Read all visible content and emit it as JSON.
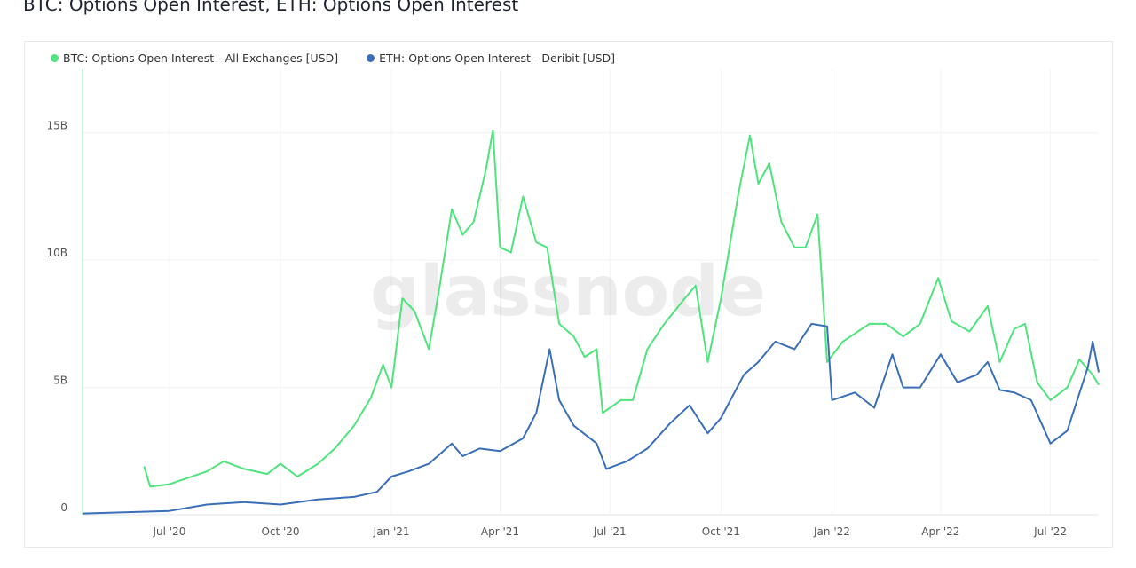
{
  "title": "BTC: Options Open Interest, ETH: Options Open Interest",
  "watermark": "glassnode",
  "chart_data": {
    "type": "line",
    "title": "BTC: Options Open Interest, ETH: Options Open Interest",
    "xlabel": "",
    "ylabel": "",
    "xlim": [
      "2020-04-20",
      "2022-08-10"
    ],
    "ylim": [
      0,
      17.5
    ],
    "y_unit": "B USD",
    "grid": true,
    "legend_placement": "top-left",
    "x_ticks": [
      {
        "date": "2020-07-01",
        "label": "Jul '20"
      },
      {
        "date": "2020-10-01",
        "label": "Oct '20"
      },
      {
        "date": "2021-01-01",
        "label": "Jan '21"
      },
      {
        "date": "2021-04-01",
        "label": "Apr '21"
      },
      {
        "date": "2021-07-01",
        "label": "Jul '21"
      },
      {
        "date": "2021-10-01",
        "label": "Oct '21"
      },
      {
        "date": "2022-01-01",
        "label": "Jan '22"
      },
      {
        "date": "2022-04-01",
        "label": "Apr '22"
      },
      {
        "date": "2022-07-01",
        "label": "Jul '22"
      }
    ],
    "y_ticks": [
      {
        "value": 0,
        "label": "0"
      },
      {
        "value": 5,
        "label": "5B"
      },
      {
        "value": 10,
        "label": "10B"
      },
      {
        "value": 15,
        "label": "15B"
      }
    ],
    "series": [
      {
        "name": "BTC: Options Open Interest - All Exchanges [USD]",
        "color": "#4ee47c",
        "points": [
          [
            "2020-06-10",
            1.9
          ],
          [
            "2020-06-15",
            1.1
          ],
          [
            "2020-07-01",
            1.2
          ],
          [
            "2020-08-01",
            1.7
          ],
          [
            "2020-08-15",
            2.1
          ],
          [
            "2020-09-01",
            1.8
          ],
          [
            "2020-09-20",
            1.6
          ],
          [
            "2020-10-01",
            2.0
          ],
          [
            "2020-10-15",
            1.5
          ],
          [
            "2020-11-01",
            2.0
          ],
          [
            "2020-11-15",
            2.6
          ],
          [
            "2020-12-01",
            3.5
          ],
          [
            "2020-12-15",
            4.6
          ],
          [
            "2020-12-25",
            5.9
          ],
          [
            "2021-01-01",
            5.0
          ],
          [
            "2021-01-10",
            8.5
          ],
          [
            "2021-01-20",
            8.0
          ],
          [
            "2021-02-01",
            6.5
          ],
          [
            "2021-02-10",
            9.0
          ],
          [
            "2021-02-20",
            12.0
          ],
          [
            "2021-03-01",
            11.0
          ],
          [
            "2021-03-10",
            11.5
          ],
          [
            "2021-03-20",
            13.5
          ],
          [
            "2021-03-26",
            15.1
          ],
          [
            "2021-04-01",
            10.5
          ],
          [
            "2021-04-10",
            10.3
          ],
          [
            "2021-04-20",
            12.5
          ],
          [
            "2021-05-01",
            10.7
          ],
          [
            "2021-05-10",
            10.5
          ],
          [
            "2021-05-20",
            7.5
          ],
          [
            "2021-06-01",
            7.0
          ],
          [
            "2021-06-10",
            6.2
          ],
          [
            "2021-06-20",
            6.5
          ],
          [
            "2021-06-25",
            4.0
          ],
          [
            "2021-07-10",
            4.5
          ],
          [
            "2021-07-20",
            4.5
          ],
          [
            "2021-08-01",
            6.5
          ],
          [
            "2021-08-15",
            7.5
          ],
          [
            "2021-09-01",
            8.5
          ],
          [
            "2021-09-10",
            9.0
          ],
          [
            "2021-09-20",
            6.0
          ],
          [
            "2021-10-01",
            8.5
          ],
          [
            "2021-10-15",
            12.5
          ],
          [
            "2021-10-25",
            14.9
          ],
          [
            "2021-11-01",
            13.0
          ],
          [
            "2021-11-10",
            13.8
          ],
          [
            "2021-11-20",
            11.5
          ],
          [
            "2021-12-01",
            10.5
          ],
          [
            "2021-12-10",
            10.5
          ],
          [
            "2021-12-20",
            11.8
          ],
          [
            "2021-12-28",
            6.0
          ],
          [
            "2022-01-10",
            6.8
          ],
          [
            "2022-02-01",
            7.5
          ],
          [
            "2022-02-15",
            7.5
          ],
          [
            "2022-03-01",
            7.0
          ],
          [
            "2022-03-15",
            7.5
          ],
          [
            "2022-03-30",
            9.3
          ],
          [
            "2022-04-10",
            7.6
          ],
          [
            "2022-04-25",
            7.2
          ],
          [
            "2022-05-10",
            8.2
          ],
          [
            "2022-05-20",
            6.0
          ],
          [
            "2022-06-01",
            7.3
          ],
          [
            "2022-06-10",
            7.5
          ],
          [
            "2022-06-20",
            5.2
          ],
          [
            "2022-07-01",
            4.5
          ],
          [
            "2022-07-15",
            5.0
          ],
          [
            "2022-07-25",
            6.1
          ],
          [
            "2022-08-05",
            5.5
          ],
          [
            "2022-08-10",
            5.1
          ]
        ]
      },
      {
        "name": "ETH: Options Open Interest - Deribit [USD]",
        "color": "#3a6fb8",
        "points": [
          [
            "2020-04-20",
            0.05
          ],
          [
            "2020-07-01",
            0.15
          ],
          [
            "2020-08-01",
            0.4
          ],
          [
            "2020-09-01",
            0.5
          ],
          [
            "2020-10-01",
            0.4
          ],
          [
            "2020-11-01",
            0.6
          ],
          [
            "2020-12-01",
            0.7
          ],
          [
            "2020-12-20",
            0.9
          ],
          [
            "2021-01-01",
            1.5
          ],
          [
            "2021-01-15",
            1.7
          ],
          [
            "2021-02-01",
            2.0
          ],
          [
            "2021-02-20",
            2.8
          ],
          [
            "2021-03-01",
            2.3
          ],
          [
            "2021-03-15",
            2.6
          ],
          [
            "2021-04-01",
            2.5
          ],
          [
            "2021-04-20",
            3.0
          ],
          [
            "2021-05-01",
            4.0
          ],
          [
            "2021-05-12",
            6.5
          ],
          [
            "2021-05-20",
            4.5
          ],
          [
            "2021-06-01",
            3.5
          ],
          [
            "2021-06-20",
            2.8
          ],
          [
            "2021-06-28",
            1.8
          ],
          [
            "2021-07-15",
            2.1
          ],
          [
            "2021-08-01",
            2.6
          ],
          [
            "2021-08-20",
            3.6
          ],
          [
            "2021-09-05",
            4.3
          ],
          [
            "2021-09-20",
            3.2
          ],
          [
            "2021-10-01",
            3.8
          ],
          [
            "2021-10-20",
            5.5
          ],
          [
            "2021-11-01",
            6.0
          ],
          [
            "2021-11-15",
            6.8
          ],
          [
            "2021-12-01",
            6.5
          ],
          [
            "2021-12-15",
            7.5
          ],
          [
            "2021-12-28",
            7.4
          ],
          [
            "2022-01-01",
            4.5
          ],
          [
            "2022-01-20",
            4.8
          ],
          [
            "2022-02-05",
            4.2
          ],
          [
            "2022-02-20",
            6.3
          ],
          [
            "2022-03-01",
            5.0
          ],
          [
            "2022-03-15",
            5.0
          ],
          [
            "2022-04-01",
            6.3
          ],
          [
            "2022-04-15",
            5.2
          ],
          [
            "2022-05-01",
            5.5
          ],
          [
            "2022-05-10",
            6.0
          ],
          [
            "2022-05-20",
            4.9
          ],
          [
            "2022-06-01",
            4.8
          ],
          [
            "2022-06-15",
            4.5
          ],
          [
            "2022-07-01",
            2.8
          ],
          [
            "2022-07-15",
            3.3
          ],
          [
            "2022-08-01",
            5.8
          ],
          [
            "2022-08-05",
            6.8
          ],
          [
            "2022-08-10",
            5.6
          ]
        ]
      }
    ]
  }
}
